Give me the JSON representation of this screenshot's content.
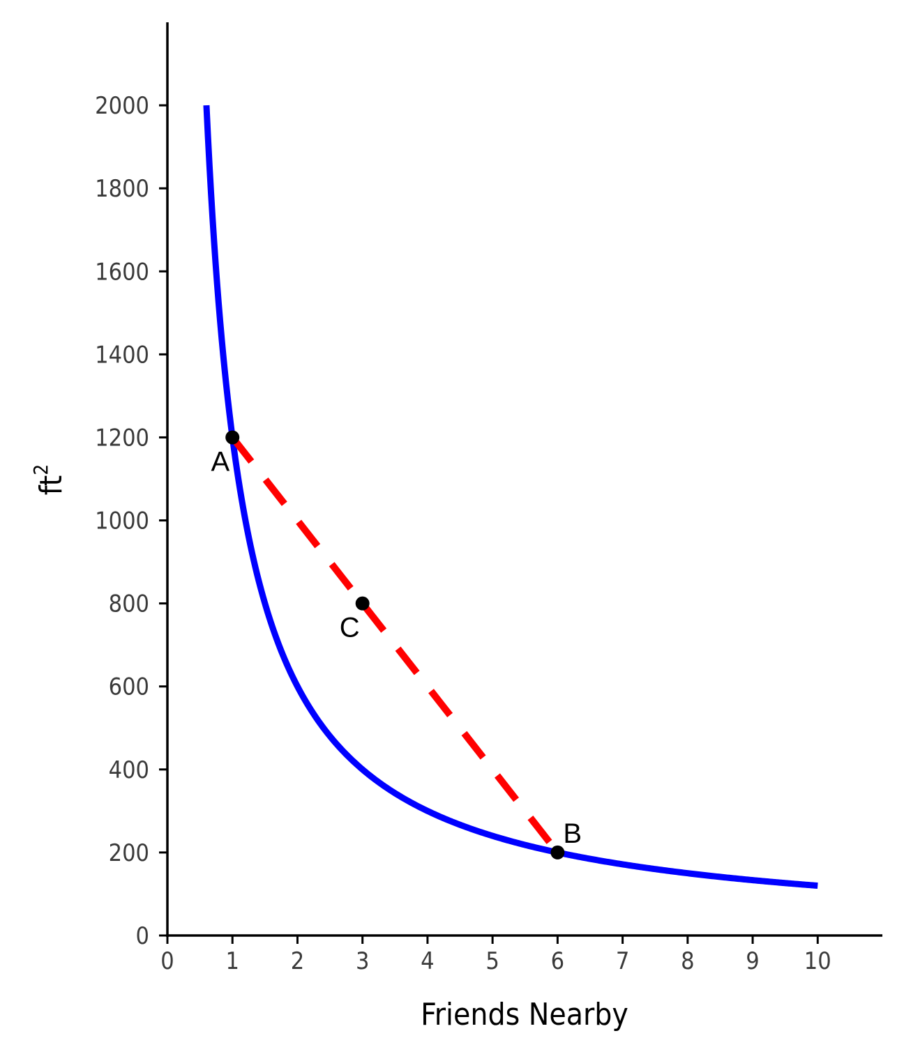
{
  "chart_data": {
    "type": "line",
    "xlabel": "Friends Nearby",
    "ylabel_base": "ft",
    "ylabel_sup": "2",
    "xlim": [
      0,
      11
    ],
    "ylim": [
      0,
      2200
    ],
    "x_ticks": [
      "0",
      "1",
      "2",
      "3",
      "4",
      "5",
      "6",
      "7",
      "8",
      "9",
      "10"
    ],
    "y_ticks": [
      "0",
      "200",
      "400",
      "600",
      "800",
      "1000",
      "1200",
      "1400",
      "1600",
      "1800",
      "2000"
    ],
    "grid": false,
    "series": [
      {
        "kind": "curve",
        "function": "y = 1200 / x",
        "x_range": [
          0.6,
          10
        ],
        "color": "#0000ff"
      },
      {
        "kind": "segment",
        "style": "dashed",
        "points": [
          [
            1,
            1200
          ],
          [
            6,
            200
          ]
        ],
        "color": "#ff0000"
      }
    ],
    "points": [
      {
        "label": "A",
        "x": 1,
        "y": 1200
      },
      {
        "label": "B",
        "x": 6,
        "y": 200
      },
      {
        "label": "C",
        "x": 3,
        "y": 800
      }
    ]
  }
}
